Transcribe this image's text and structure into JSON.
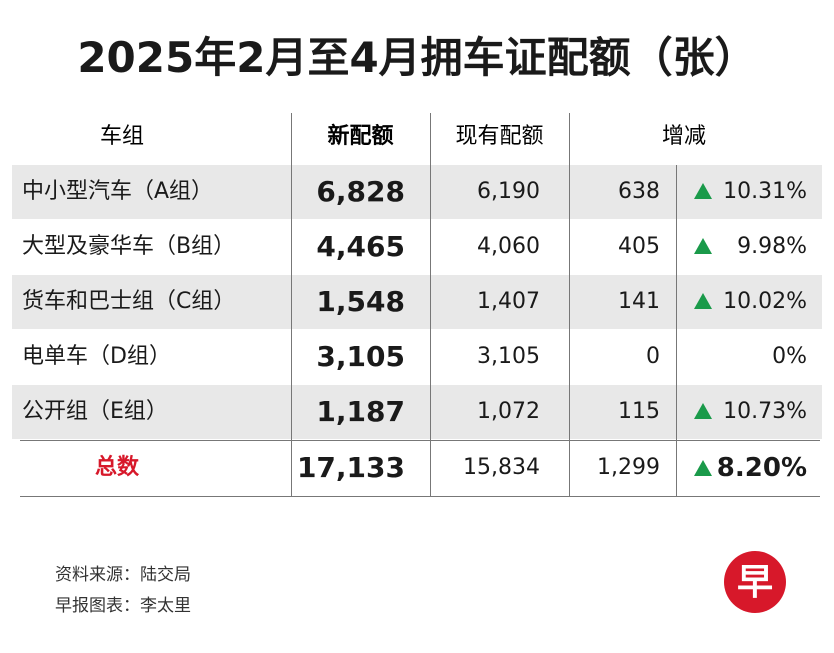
{
  "title": "2025年2月至4月拥车证配额（张）",
  "table": {
    "headers": [
      "车组",
      "新配额",
      "现有配额",
      "增减"
    ],
    "rows": [
      [
        "中小型汽车（A组）",
        "6,828",
        "6,190",
        "638",
        "10.31%"
      ],
      [
        "大型及豪华车（B组）",
        "4,465",
        "4,060",
        "405",
        "9.98%"
      ],
      [
        "货车和巴士组（C组）",
        "1,548",
        "1,407",
        "141",
        "10.02%"
      ],
      [
        "电单车（D组）",
        "3,105",
        "3,105",
        "0",
        "0%"
      ],
      [
        "公开组（E组）",
        "1,187",
        "1,072",
        "115",
        "10.73%"
      ]
    ],
    "total": [
      "总数",
      "17,133",
      "15,834",
      "1,299",
      "8.20%"
    ]
  },
  "footer": {
    "source": "资料来源：陆交局",
    "credit": "早报图表：李太里",
    "logo": "早"
  }
}
